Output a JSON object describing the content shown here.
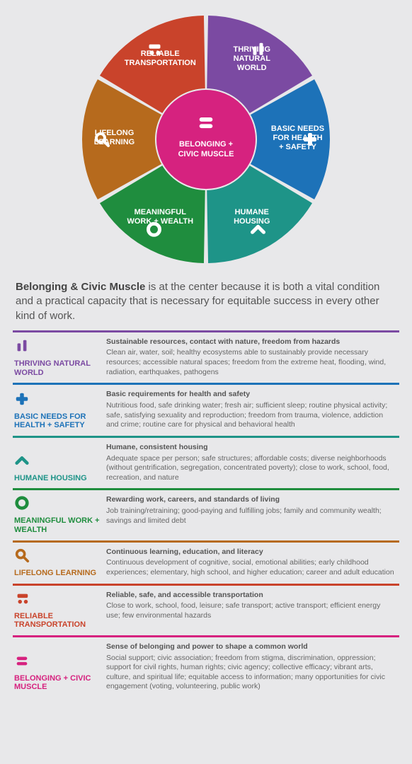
{
  "background_color": "#e8e8ea",
  "intro": {
    "bold": "Belonging & Civic Muscle",
    "rest": " is at the center because it is both a vital condition and a practical capacity that is necessary for equitable success in every other kind of work."
  },
  "center": {
    "label1": "BELONGING +",
    "label2": "CIVIC MUSCLE",
    "color": "#d6227f"
  },
  "segments": [
    {
      "id": "thriving",
      "label1": "THRIVING",
      "label2": "NATURAL",
      "label3": "WORLD",
      "color": "#7b4aa2",
      "icon": "bars"
    },
    {
      "id": "basic",
      "label1": "BASIC NEEDS",
      "label2": "FOR HEALTH",
      "label3": "+ SAFETY",
      "color": "#1d72b8",
      "icon": "plus"
    },
    {
      "id": "humane",
      "label1": "HUMANE",
      "label2": "HOUSING",
      "label3": "",
      "color": "#1e9488",
      "icon": "chevron"
    },
    {
      "id": "meaningful",
      "label1": "MEANINGFUL",
      "label2": "WORK + WEALTH",
      "label3": "",
      "color": "#1f8d3e",
      "icon": "ring"
    },
    {
      "id": "lifelong",
      "label1": "LIFELONG",
      "label2": "LEARNING",
      "label3": "",
      "color": "#b66a1d",
      "icon": "search"
    },
    {
      "id": "reliable",
      "label1": "RELIABLE",
      "label2": "TRANSPORTATION",
      "label3": "",
      "color": "#c9432b",
      "icon": "cart"
    }
  ],
  "rows": [
    {
      "id": "thriving",
      "color": "#7b4aa2",
      "label": "THRIVING NATURAL WORLD",
      "heading": "Sustainable resources, contact with nature, freedom from hazards",
      "body": "Clean air, water, soil; healthy ecosystems able to sustainably provide necessary resources; accessible natural spaces; freedom from the extreme heat, flooding, wind, radiation, earthquakes, pathogens",
      "icon": "bars"
    },
    {
      "id": "basic",
      "color": "#1d72b8",
      "label": "BASIC NEEDS FOR HEALTH + SAFETY",
      "heading": "Basic requirements for health and safety",
      "body": "Nutritious food, safe drinking water; fresh air; sufficient sleep; routine physical activity; safe, satisfying sexuality and reproduction; freedom from trauma, violence, addiction and crime; routine care for physical and behavioral health",
      "icon": "plus"
    },
    {
      "id": "humane",
      "color": "#1e9488",
      "label": "HUMANE HOUSING",
      "heading": "Humane, consistent housing",
      "body": "Adequate space per person; safe structures; affordable costs; diverse neighborhoods (without gentrification, segregation, concentrated poverty); close to work, school, food, recreation, and nature",
      "icon": "chevron"
    },
    {
      "id": "meaningful",
      "color": "#1f8d3e",
      "label": "MEANINGFUL WORK + WEALTH",
      "heading": "Rewarding work, careers, and standards of living",
      "body": "Job training/retraining; good-paying and fulfilling jobs; family and community wealth; savings and limited debt",
      "icon": "ring"
    },
    {
      "id": "lifelong",
      "color": "#b66a1d",
      "label": "LIFELONG LEARNING",
      "heading": "Continuous learning, education, and literacy",
      "body": "Continuous development of cognitive, social, emotional abilities; early childhood experiences; elementary, high school, and higher education; career and adult education",
      "icon": "search"
    },
    {
      "id": "reliable",
      "color": "#c9432b",
      "label": "RELIABLE TRANSPORTATION",
      "heading": "Reliable, safe, and accessible transportation",
      "body": "Close to work, school, food, leisure; safe transport; active transport; efficient energy use; few environmental hazards",
      "icon": "cart"
    },
    {
      "id": "belonging",
      "color": "#d6227f",
      "label": "BELONGING + CIVIC MUSCLE",
      "heading": "Sense of belonging and power to shape a common world",
      "body": "Social support; civic association; freedom from stigma, discrimination, oppression; support for civil rights, human rights; civic agency; collective efficacy; vibrant arts, culture, and spiritual life; equitable access to information; many opportunities for civic engagement (voting, volunteering, public work)",
      "icon": "equals"
    }
  ],
  "wheel_geometry": {
    "outer_radius": 175,
    "inner_radius": 72,
    "gap_deg": 2
  }
}
